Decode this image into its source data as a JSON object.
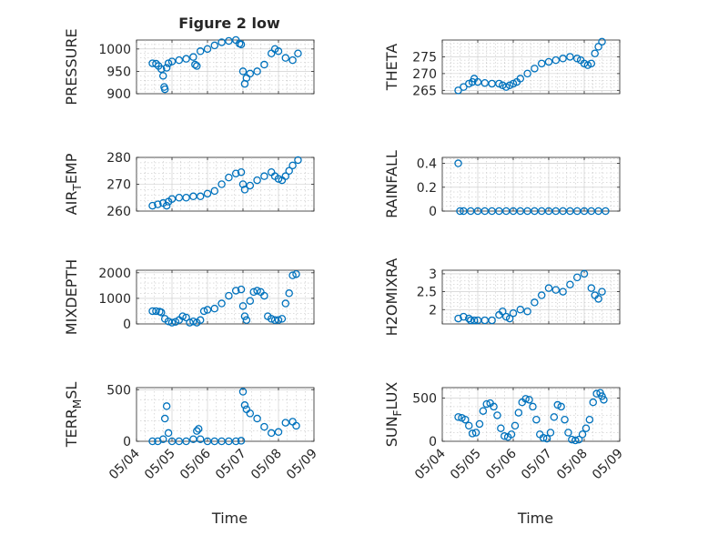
{
  "figure_title": "Figure 2 low",
  "colors": {
    "marker": "#0072BD",
    "axes": "#262626",
    "grid": "#c8c8c8"
  },
  "chart_data": [
    {
      "type": "scatter",
      "ylabel": "PRESSURE",
      "ylim": [
        900,
        1020
      ],
      "yticks": [
        900,
        950,
        1000
      ],
      "yticklabels": [
        "900",
        "950",
        "1000"
      ],
      "xlim": [
        0,
        5
      ],
      "xlabel": "",
      "xticklabels": [],
      "grid": true,
      "legend": "none",
      "x": [
        0.45,
        0.55,
        0.62,
        0.7,
        0.75,
        0.78,
        0.8,
        0.85,
        0.9,
        1.0,
        1.2,
        1.4,
        1.6,
        1.65,
        1.7,
        1.8,
        2.0,
        2.2,
        2.4,
        2.6,
        2.8,
        2.9,
        2.95,
        3.0,
        3.05,
        3.1,
        3.2,
        3.4,
        3.6,
        3.8,
        3.9,
        4.0,
        4.2,
        4.4,
        4.55
      ],
      "y": [
        968,
        967,
        962,
        955,
        940,
        915,
        910,
        958,
        968,
        972,
        975,
        978,
        982,
        965,
        962,
        995,
        1000,
        1008,
        1015,
        1018,
        1020,
        1012,
        1010,
        950,
        922,
        935,
        945,
        950,
        965,
        990,
        1000,
        995,
        980,
        975,
        990
      ]
    },
    {
      "type": "scatter",
      "ylabel": "THETA",
      "ylim": [
        264,
        280
      ],
      "yticks": [
        265,
        270,
        275
      ],
      "yticklabels": [
        "265",
        "270",
        "275"
      ],
      "xlim": [
        0,
        5
      ],
      "xlabel": "",
      "xticklabels": [],
      "grid": true,
      "legend": "none",
      "x": [
        0.45,
        0.6,
        0.75,
        0.85,
        0.9,
        1.0,
        1.2,
        1.4,
        1.6,
        1.7,
        1.8,
        1.9,
        2.0,
        2.1,
        2.2,
        2.4,
        2.6,
        2.8,
        3.0,
        3.2,
        3.4,
        3.6,
        3.8,
        3.9,
        4.0,
        4.1,
        4.2,
        4.3,
        4.4,
        4.5
      ],
      "y": [
        265,
        266,
        267,
        267.5,
        268.5,
        267.5,
        267.2,
        267,
        267,
        266.5,
        266,
        266.5,
        267,
        267.5,
        268.5,
        270,
        271.5,
        273,
        273.5,
        274,
        274.5,
        275,
        274.5,
        274,
        273,
        272.5,
        273,
        276,
        278,
        279.5
      ]
    },
    {
      "type": "scatter",
      "ylabel": "AIR_TEMP",
      "ylim": [
        260,
        280
      ],
      "yticks": [
        260,
        270,
        280
      ],
      "yticklabels": [
        "260",
        "270",
        "280"
      ],
      "xlim": [
        0,
        5
      ],
      "xlabel": "",
      "xticklabels": [],
      "grid": true,
      "legend": "none",
      "x": [
        0.45,
        0.6,
        0.75,
        0.85,
        0.9,
        1.0,
        1.2,
        1.4,
        1.6,
        1.8,
        2.0,
        2.2,
        2.4,
        2.6,
        2.8,
        2.95,
        3.0,
        3.05,
        3.2,
        3.4,
        3.6,
        3.8,
        3.9,
        4.0,
        4.1,
        4.2,
        4.3,
        4.4,
        4.55
      ],
      "y": [
        262,
        262.5,
        263,
        262,
        263.5,
        264.5,
        265,
        265,
        265.5,
        265.5,
        266.5,
        267.5,
        270,
        272.5,
        274,
        274.5,
        270,
        268,
        269.5,
        271.5,
        273,
        274.5,
        273,
        272,
        271.5,
        273,
        275,
        277,
        279
      ]
    },
    {
      "type": "scatter",
      "ylabel": "RAINFALL",
      "ylim": [
        0,
        0.45
      ],
      "yticks": [
        0,
        0.2,
        0.4
      ],
      "yticklabels": [
        "0",
        "0.2",
        "0.4"
      ],
      "xlim": [
        0,
        5
      ],
      "xlabel": "",
      "xticklabels": [],
      "grid": true,
      "legend": "none",
      "x": [
        0.45,
        0.5,
        0.6,
        0.8,
        1.0,
        1.2,
        1.4,
        1.6,
        1.8,
        2.0,
        2.2,
        2.4,
        2.6,
        2.8,
        3.0,
        3.2,
        3.4,
        3.6,
        3.8,
        4.0,
        4.2,
        4.4,
        4.6
      ],
      "y": [
        0.4,
        0,
        0,
        0,
        0,
        0,
        0,
        0,
        0,
        0,
        0,
        0,
        0,
        0,
        0,
        0,
        0,
        0,
        0,
        0,
        0,
        0,
        0
      ]
    },
    {
      "type": "scatter",
      "ylabel": "MIXDEPTH",
      "ylim": [
        0,
        2100
      ],
      "yticks": [
        0,
        1000,
        2000
      ],
      "yticklabels": [
        "0",
        "1000",
        "2000"
      ],
      "xlim": [
        0,
        5
      ],
      "xlabel": "",
      "xticklabels": [],
      "grid": true,
      "legend": "none",
      "x": [
        0.45,
        0.55,
        0.65,
        0.7,
        0.8,
        0.9,
        1.0,
        1.1,
        1.2,
        1.3,
        1.4,
        1.5,
        1.6,
        1.7,
        1.8,
        1.9,
        2.0,
        2.2,
        2.4,
        2.6,
        2.8,
        2.95,
        3.0,
        3.05,
        3.1,
        3.2,
        3.3,
        3.4,
        3.5,
        3.6,
        3.7,
        3.8,
        3.9,
        4.0,
        4.1,
        4.2,
        4.3,
        4.4,
        4.5
      ],
      "y": [
        500,
        500,
        480,
        450,
        200,
        100,
        50,
        80,
        150,
        300,
        250,
        50,
        100,
        50,
        150,
        500,
        550,
        600,
        800,
        1100,
        1300,
        1350,
        700,
        300,
        150,
        900,
        1250,
        1300,
        1250,
        1100,
        300,
        200,
        150,
        150,
        200,
        800,
        1200,
        1900,
        1950
      ]
    },
    {
      "type": "scatter",
      "ylabel": "H2OMIXRA",
      "ylim": [
        1.6,
        3.1
      ],
      "yticks": [
        2,
        2.5,
        3
      ],
      "yticklabels": [
        "2",
        "2.5",
        "3"
      ],
      "xlim": [
        0,
        5
      ],
      "xlabel": "",
      "xticklabels": [],
      "grid": true,
      "legend": "none",
      "x": [
        0.45,
        0.6,
        0.75,
        0.8,
        0.9,
        1.0,
        1.2,
        1.4,
        1.6,
        1.7,
        1.8,
        1.9,
        2.0,
        2.2,
        2.4,
        2.6,
        2.8,
        3.0,
        3.2,
        3.4,
        3.6,
        3.8,
        4.0,
        4.2,
        4.3,
        4.4,
        4.5
      ],
      "y": [
        1.75,
        1.8,
        1.75,
        1.7,
        1.7,
        1.7,
        1.7,
        1.7,
        1.85,
        1.95,
        1.8,
        1.75,
        1.9,
        2.0,
        1.95,
        2.2,
        2.4,
        2.6,
        2.55,
        2.5,
        2.7,
        2.9,
        3.0,
        2.6,
        2.4,
        2.3,
        2.5
      ]
    },
    {
      "type": "scatter",
      "ylabel": "TERR_MSL",
      "ylim": [
        0,
        520
      ],
      "yticks": [
        0,
        500
      ],
      "yticklabels": [
        "0",
        "500"
      ],
      "xlim": [
        0,
        5
      ],
      "xlabel": "Time",
      "xticks": [
        0,
        1,
        2,
        3,
        4,
        5
      ],
      "xticklabels": [
        "05/04",
        "05/05",
        "05/06",
        "05/07",
        "05/08",
        "05/09"
      ],
      "grid": true,
      "legend": "none",
      "x": [
        0.45,
        0.6,
        0.75,
        0.8,
        0.85,
        0.9,
        1.0,
        1.2,
        1.4,
        1.6,
        1.7,
        1.75,
        1.8,
        2.0,
        2.2,
        2.4,
        2.6,
        2.8,
        2.95,
        3.0,
        3.05,
        3.1,
        3.2,
        3.4,
        3.6,
        3.8,
        4.0,
        4.2,
        4.4,
        4.5
      ],
      "y": [
        0,
        0,
        20,
        220,
        340,
        80,
        0,
        0,
        0,
        20,
        100,
        120,
        20,
        0,
        0,
        0,
        0,
        0,
        5,
        480,
        350,
        310,
        270,
        220,
        140,
        80,
        90,
        180,
        190,
        150
      ]
    },
    {
      "type": "scatter",
      "ylabel": "SUN_FLUX",
      "ylim": [
        0,
        620
      ],
      "yticks": [
        0,
        500
      ],
      "yticklabels": [
        "0",
        "500"
      ],
      "xlim": [
        0,
        5
      ],
      "xlabel": "Time",
      "xticks": [
        0,
        1,
        2,
        3,
        4,
        5
      ],
      "xticklabels": [
        "05/04",
        "05/05",
        "05/06",
        "05/07",
        "05/08",
        "05/09"
      ],
      "grid": true,
      "legend": "none",
      "x": [
        0.45,
        0.55,
        0.65,
        0.75,
        0.85,
        0.95,
        1.05,
        1.15,
        1.25,
        1.35,
        1.45,
        1.55,
        1.65,
        1.75,
        1.85,
        1.95,
        2.05,
        2.15,
        2.25,
        2.35,
        2.45,
        2.55,
        2.65,
        2.75,
        2.85,
        2.95,
        3.05,
        3.15,
        3.25,
        3.35,
        3.45,
        3.55,
        3.65,
        3.75,
        3.85,
        3.95,
        4.05,
        4.15,
        4.25,
        4.35,
        4.45,
        4.5,
        4.55
      ],
      "y": [
        280,
        270,
        250,
        180,
        90,
        100,
        200,
        350,
        430,
        440,
        400,
        300,
        150,
        60,
        50,
        80,
        180,
        330,
        450,
        490,
        480,
        400,
        250,
        80,
        40,
        30,
        100,
        280,
        420,
        400,
        250,
        100,
        20,
        10,
        20,
        80,
        150,
        250,
        450,
        550,
        560,
        520,
        480
      ]
    }
  ]
}
